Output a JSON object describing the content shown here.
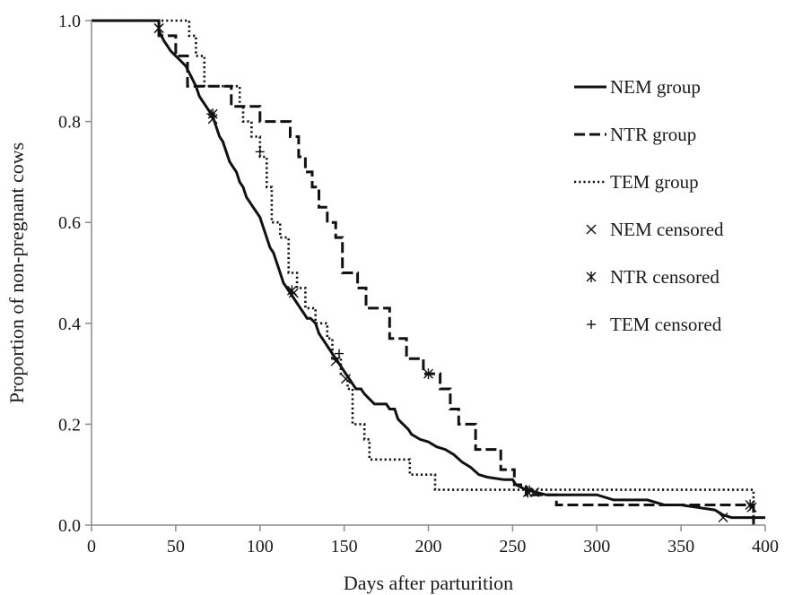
{
  "chart_data": {
    "type": "line",
    "xlabel": "Days after parturition",
    "ylabel": "Proportion of non-pregnant cows",
    "xlim": [
      0,
      400
    ],
    "ylim": [
      0,
      1.0
    ],
    "x_ticks": [
      "0",
      "50",
      "100",
      "150",
      "200",
      "250",
      "300",
      "350",
      "400"
    ],
    "y_ticks": [
      "0.0",
      "0.2",
      "0.4",
      "0.6",
      "0.8",
      "1.0"
    ],
    "grid": false,
    "legend_position": "right",
    "series": [
      {
        "name": "NEM group",
        "style": "solid",
        "color": "#111111",
        "points": [
          [
            0,
            1.0
          ],
          [
            40,
            1.0
          ],
          [
            40,
            0.98
          ],
          [
            43,
            0.96
          ],
          [
            45,
            0.95
          ],
          [
            47,
            0.94
          ],
          [
            50,
            0.93
          ],
          [
            53,
            0.92
          ],
          [
            56,
            0.91
          ],
          [
            59,
            0.89
          ],
          [
            62,
            0.87
          ],
          [
            64,
            0.85
          ],
          [
            66,
            0.84
          ],
          [
            68,
            0.83
          ],
          [
            70,
            0.82
          ],
          [
            72,
            0.81
          ],
          [
            74,
            0.79
          ],
          [
            76,
            0.77
          ],
          [
            78,
            0.76
          ],
          [
            80,
            0.74
          ],
          [
            82,
            0.72
          ],
          [
            84,
            0.71
          ],
          [
            86,
            0.7
          ],
          [
            88,
            0.68
          ],
          [
            90,
            0.67
          ],
          [
            92,
            0.65
          ],
          [
            94,
            0.64
          ],
          [
            96,
            0.63
          ],
          [
            98,
            0.62
          ],
          [
            100,
            0.61
          ],
          [
            102,
            0.59
          ],
          [
            104,
            0.57
          ],
          [
            106,
            0.55
          ],
          [
            108,
            0.54
          ],
          [
            110,
            0.52
          ],
          [
            112,
            0.5
          ],
          [
            114,
            0.48
          ],
          [
            116,
            0.47
          ],
          [
            118,
            0.46
          ],
          [
            120,
            0.45
          ],
          [
            122,
            0.44
          ],
          [
            124,
            0.43
          ],
          [
            126,
            0.42
          ],
          [
            128,
            0.41
          ],
          [
            130,
            0.41
          ],
          [
            133,
            0.4
          ],
          [
            135,
            0.38
          ],
          [
            137,
            0.37
          ],
          [
            139,
            0.36
          ],
          [
            141,
            0.35
          ],
          [
            143,
            0.34
          ],
          [
            145,
            0.33
          ],
          [
            147,
            0.32
          ],
          [
            149,
            0.31
          ],
          [
            151,
            0.3
          ],
          [
            153,
            0.29
          ],
          [
            155,
            0.28
          ],
          [
            157,
            0.27
          ],
          [
            160,
            0.27
          ],
          [
            162,
            0.26
          ],
          [
            165,
            0.25
          ],
          [
            168,
            0.24
          ],
          [
            175,
            0.24
          ],
          [
            177,
            0.23
          ],
          [
            180,
            0.23
          ],
          [
            182,
            0.21
          ],
          [
            185,
            0.2
          ],
          [
            188,
            0.19
          ],
          [
            190,
            0.18
          ],
          [
            195,
            0.17
          ],
          [
            200,
            0.165
          ],
          [
            205,
            0.155
          ],
          [
            210,
            0.15
          ],
          [
            215,
            0.14
          ],
          [
            220,
            0.125
          ],
          [
            225,
            0.115
          ],
          [
            230,
            0.1
          ],
          [
            235,
            0.095
          ],
          [
            245,
            0.09
          ],
          [
            250,
            0.09
          ],
          [
            252,
            0.08
          ],
          [
            255,
            0.075
          ],
          [
            258,
            0.07
          ],
          [
            270,
            0.06
          ],
          [
            300,
            0.06
          ],
          [
            310,
            0.05
          ],
          [
            330,
            0.05
          ],
          [
            340,
            0.04
          ],
          [
            350,
            0.04
          ],
          [
            360,
            0.035
          ],
          [
            370,
            0.03
          ],
          [
            375,
            0.02
          ],
          [
            380,
            0.015
          ],
          [
            400,
            0.015
          ]
        ]
      },
      {
        "name": "NTR group",
        "style": "dashed",
        "color": "#111111",
        "points": [
          [
            0,
            1.0
          ],
          [
            40,
            1.0
          ],
          [
            40,
            0.97
          ],
          [
            50,
            0.97
          ],
          [
            50,
            0.93
          ],
          [
            57,
            0.93
          ],
          [
            57,
            0.87
          ],
          [
            83,
            0.87
          ],
          [
            83,
            0.83
          ],
          [
            100,
            0.83
          ],
          [
            100,
            0.8
          ],
          [
            118,
            0.8
          ],
          [
            118,
            0.77
          ],
          [
            123,
            0.77
          ],
          [
            123,
            0.73
          ],
          [
            127,
            0.73
          ],
          [
            127,
            0.7
          ],
          [
            131,
            0.7
          ],
          [
            131,
            0.67
          ],
          [
            135,
            0.67
          ],
          [
            135,
            0.63
          ],
          [
            140,
            0.63
          ],
          [
            140,
            0.6
          ],
          [
            145,
            0.6
          ],
          [
            145,
            0.57
          ],
          [
            149,
            0.57
          ],
          [
            149,
            0.5
          ],
          [
            158,
            0.5
          ],
          [
            158,
            0.47
          ],
          [
            163,
            0.47
          ],
          [
            163,
            0.43
          ],
          [
            177,
            0.43
          ],
          [
            177,
            0.37
          ],
          [
            187,
            0.37
          ],
          [
            187,
            0.33
          ],
          [
            197,
            0.33
          ],
          [
            197,
            0.3
          ],
          [
            207,
            0.3
          ],
          [
            207,
            0.27
          ],
          [
            213,
            0.27
          ],
          [
            213,
            0.23
          ],
          [
            218,
            0.23
          ],
          [
            218,
            0.2
          ],
          [
            228,
            0.2
          ],
          [
            228,
            0.15
          ],
          [
            243,
            0.15
          ],
          [
            243,
            0.11
          ],
          [
            251,
            0.11
          ],
          [
            251,
            0.08
          ],
          [
            258,
            0.08
          ],
          [
            258,
            0.06
          ],
          [
            276,
            0.06
          ],
          [
            276,
            0.04
          ],
          [
            393,
            0.04
          ],
          [
            393,
            0.0
          ]
        ]
      },
      {
        "name": "TEM group",
        "style": "dotted",
        "color": "#111111",
        "points": [
          [
            0,
            1.0
          ],
          [
            58,
            1.0
          ],
          [
            58,
            0.97
          ],
          [
            62,
            0.97
          ],
          [
            62,
            0.93
          ],
          [
            67,
            0.93
          ],
          [
            67,
            0.87
          ],
          [
            88,
            0.87
          ],
          [
            88,
            0.83
          ],
          [
            90,
            0.83
          ],
          [
            90,
            0.8
          ],
          [
            95,
            0.8
          ],
          [
            95,
            0.77
          ],
          [
            100,
            0.77
          ],
          [
            100,
            0.73
          ],
          [
            104,
            0.73
          ],
          [
            104,
            0.67
          ],
          [
            107,
            0.67
          ],
          [
            107,
            0.6
          ],
          [
            112,
            0.6
          ],
          [
            112,
            0.57
          ],
          [
            117,
            0.57
          ],
          [
            117,
            0.5
          ],
          [
            122,
            0.5
          ],
          [
            122,
            0.47
          ],
          [
            127,
            0.47
          ],
          [
            127,
            0.43
          ],
          [
            133,
            0.43
          ],
          [
            133,
            0.4
          ],
          [
            140,
            0.4
          ],
          [
            140,
            0.37
          ],
          [
            143,
            0.37
          ],
          [
            143,
            0.33
          ],
          [
            148,
            0.33
          ],
          [
            148,
            0.3
          ],
          [
            152,
            0.3
          ],
          [
            152,
            0.27
          ],
          [
            155,
            0.27
          ],
          [
            155,
            0.2
          ],
          [
            162,
            0.2
          ],
          [
            162,
            0.17
          ],
          [
            165,
            0.17
          ],
          [
            165,
            0.13
          ],
          [
            189,
            0.13
          ],
          [
            189,
            0.1
          ],
          [
            204,
            0.1
          ],
          [
            204,
            0.07
          ],
          [
            393,
            0.07
          ],
          [
            393,
            0.0
          ]
        ]
      }
    ],
    "censored": [
      {
        "name": "NEM censored",
        "marker": "x",
        "points": [
          [
            40,
            0.985
          ],
          [
            72,
            0.805
          ],
          [
            120,
            0.46
          ],
          [
            145,
            0.325
          ],
          [
            151,
            0.29
          ],
          [
            263,
            0.065
          ],
          [
            375,
            0.015
          ],
          [
            392,
            0.035
          ]
        ]
      },
      {
        "name": "NTR censored",
        "marker": "asterisk",
        "points": [
          [
            40,
            0.985
          ],
          [
            72,
            0.815
          ],
          [
            119,
            0.465
          ],
          [
            200,
            0.3
          ],
          [
            259,
            0.065
          ],
          [
            391,
            0.04
          ]
        ]
      },
      {
        "name": "TEM censored",
        "marker": "plus",
        "points": [
          [
            71,
            0.815
          ],
          [
            100,
            0.74
          ],
          [
            147,
            0.34
          ],
          [
            260,
            0.07
          ]
        ]
      }
    ]
  }
}
